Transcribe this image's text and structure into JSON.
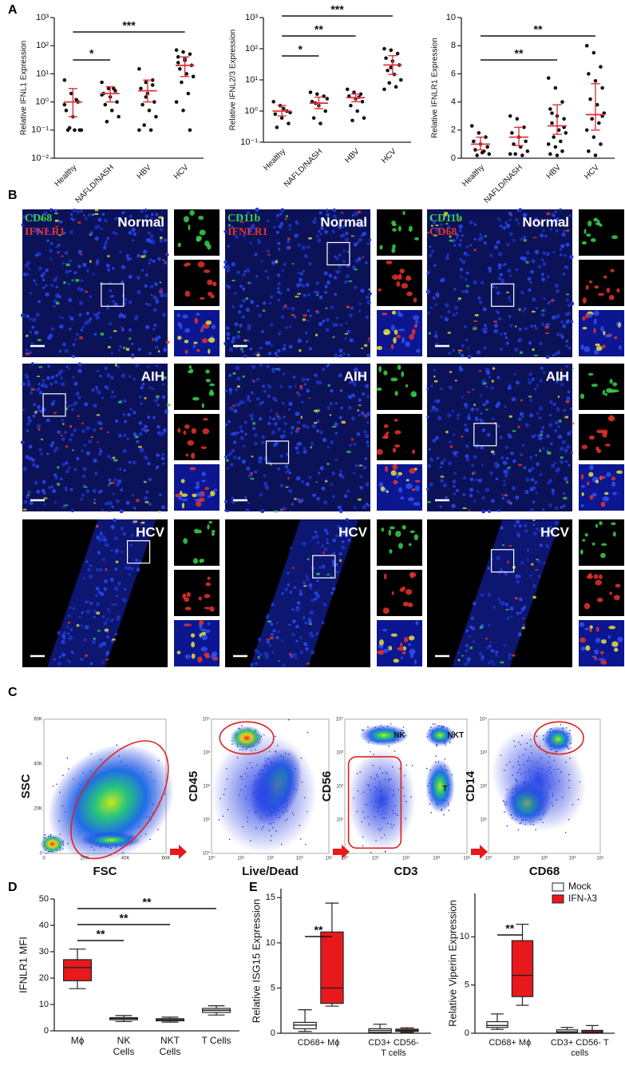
{
  "panel_labels": [
    "A",
    "B",
    "C",
    "D",
    "E"
  ],
  "chart_data": [
    {
      "type": "dot_plot",
      "y_label": "Relative IFNL1 Expression",
      "log_scale": true,
      "ylim": [
        0.01,
        1000
      ],
      "yticks": [
        {
          "value": 0.01,
          "label": "10⁻²"
        },
        {
          "value": 0.1,
          "label": "10⁻¹"
        },
        {
          "value": 1,
          "label": "10⁰"
        },
        {
          "value": 10,
          "label": "10¹"
        },
        {
          "value": 100,
          "label": "10²"
        },
        {
          "value": 1000,
          "label": "10³"
        }
      ],
      "categories": [
        "Healthy",
        "NAFLD/NASH",
        "HBV",
        "HCV"
      ],
      "points": [
        [
          6,
          2,
          1,
          0.5,
          0.3,
          0.1,
          0.1,
          0.1,
          0.1,
          0.12,
          1.2,
          0.8
        ],
        [
          5,
          3,
          2.5,
          2,
          1.5,
          1,
          0.8,
          0.5,
          0.3,
          0.2,
          3,
          1.8
        ],
        [
          15,
          5,
          4,
          3,
          2,
          1,
          0.8,
          0.5,
          0.3,
          0.15,
          0.1,
          0.1,
          1.5,
          6
        ],
        [
          70,
          60,
          50,
          40,
          30,
          20,
          15,
          10,
          8,
          5,
          2,
          1,
          0.5,
          0.1,
          25,
          35
        ]
      ],
      "means": [
        1,
        2,
        2.5,
        20
      ],
      "error_low": [
        0.3,
        1,
        1,
        8
      ],
      "error_high": [
        3,
        3.5,
        6,
        40
      ],
      "color": "#e0323c",
      "significance": [
        {
          "from": "Healthy",
          "to": "NAFLD/NASH",
          "label": "*"
        },
        {
          "from": "Healthy",
          "to": "HCV",
          "label": "***"
        }
      ]
    },
    {
      "type": "dot_plot",
      "y_label": "Relative IFNL2/3 Expression",
      "log_scale": true,
      "ylim": [
        0.1,
        1000
      ],
      "yticks": [
        {
          "value": 0.1,
          "label": "10⁻¹"
        },
        {
          "value": 1,
          "label": "10⁰"
        },
        {
          "value": 10,
          "label": "10¹"
        },
        {
          "value": 100,
          "label": "10²"
        },
        {
          "value": 1000,
          "label": "10³"
        }
      ],
      "categories": [
        "Healthy",
        "NAFLD/NASH",
        "HBV",
        "HCV"
      ],
      "points": [
        [
          2,
          1.5,
          1,
          0.8,
          0.6,
          0.4,
          0.3,
          1.2,
          0.9
        ],
        [
          4,
          3.5,
          3,
          2,
          1.5,
          1,
          0.6,
          0.4,
          2.5,
          1.8
        ],
        [
          5,
          4,
          3.5,
          3,
          2.5,
          2,
          1.5,
          1,
          0.6,
          0.5,
          2.8
        ],
        [
          100,
          90,
          70,
          50,
          40,
          30,
          20,
          15,
          10,
          8,
          6,
          5,
          25
        ]
      ],
      "means": [
        1,
        1.8,
        2.7,
        30
      ],
      "error_low": [
        0.7,
        1.2,
        2,
        15
      ],
      "error_high": [
        1.5,
        2.8,
        3.5,
        60
      ],
      "color": "#e0323c",
      "significance": [
        {
          "from": "Healthy",
          "to": "NAFLD/NASH",
          "label": "*"
        },
        {
          "from": "Healthy",
          "to": "HBV",
          "label": "**"
        },
        {
          "from": "Healthy",
          "to": "HCV",
          "label": "***"
        }
      ]
    },
    {
      "type": "dot_plot",
      "y_label": "Relative IFNLR1 Expression",
      "log_scale": false,
      "ylim": [
        0,
        10
      ],
      "yticks": [
        0,
        2,
        4,
        6,
        8,
        10
      ],
      "categories": [
        "Healthy",
        "NAFLD/NASH",
        "HBV",
        "HCV"
      ],
      "points": [
        [
          2.3,
          1.8,
          1.5,
          1.2,
          1,
          0.8,
          0.6,
          0.4,
          0.3,
          0.2,
          0.5
        ],
        [
          3,
          2.8,
          2.2,
          1.8,
          1.5,
          1.2,
          1,
          0.8,
          0.5,
          0.3,
          0.2,
          0.3
        ],
        [
          5.7,
          5,
          4,
          3.5,
          3,
          2.8,
          2.5,
          2,
          1.8,
          1.5,
          1.2,
          1,
          0.8,
          0.5,
          0.3,
          0.2,
          2.2,
          3.2
        ],
        [
          8,
          7.5,
          6.5,
          6,
          5.5,
          5,
          4.2,
          3.8,
          3.2,
          2.8,
          2.5,
          2,
          1.5,
          1,
          0.5,
          0.2,
          3
        ]
      ],
      "means": [
        1,
        1.5,
        2.3,
        3.1
      ],
      "error_low": [
        0.6,
        0.9,
        1.7,
        2
      ],
      "error_high": [
        1.5,
        2.2,
        3.8,
        5.3
      ],
      "color": "#e0323c",
      "significance": [
        {
          "from": "Healthy",
          "to": "HBV",
          "label": "**"
        },
        {
          "from": "Healthy",
          "to": "HCV",
          "label": "**"
        }
      ]
    },
    {
      "type": "box",
      "y_label": "IFNLR1 MFI",
      "ylim": [
        0,
        50
      ],
      "yticks": [
        0,
        10,
        20,
        30,
        40,
        50
      ],
      "categories": [
        "Mɸ",
        "NK Cells",
        "NKT Cells",
        "T Cells"
      ],
      "series": [
        {
          "colors": [
            "#e8191b",
            "#ffffff",
            "#ffffff",
            "#ffffff"
          ],
          "boxes": [
            {
              "min": 16,
              "q1": 19,
              "median": 24,
              "q3": 27,
              "max": 31
            },
            {
              "min": 3.5,
              "q1": 4.2,
              "median": 4.7,
              "q3": 5,
              "max": 5.8
            },
            {
              "min": 3.3,
              "q1": 3.8,
              "median": 4.2,
              "q3": 4.6,
              "max": 5.2
            },
            {
              "min": 6,
              "q1": 7,
              "median": 7.8,
              "q3": 8.5,
              "max": 9.5
            }
          ]
        }
      ],
      "significance": [
        {
          "from": "Mɸ",
          "to": "NK Cells",
          "label": "**"
        },
        {
          "from": "Mɸ",
          "to": "NKT Cells",
          "label": "**"
        },
        {
          "from": "Mɸ",
          "to": "T Cells",
          "label": "**"
        }
      ]
    },
    {
      "type": "box",
      "y_label": "Relative ISG15 Expression",
      "ylim": [
        0,
        16
      ],
      "yticks": [
        0,
        5,
        10,
        15
      ],
      "categories": [
        "CD68+ Mɸ",
        "CD3+ CD56- T cells"
      ],
      "series": [
        {
          "name": "Mock",
          "color": "#ffffff",
          "boxes": [
            {
              "min": 0.2,
              "q1": 0.5,
              "median": 0.9,
              "q3": 1.2,
              "max": 2.6
            },
            {
              "min": 0,
              "q1": 0.1,
              "median": 0.3,
              "q3": 0.5,
              "max": 1
            }
          ]
        },
        {
          "name": "IFN-λ3",
          "color": "#e8191b",
          "boxes": [
            {
              "min": 3,
              "q1": 3.3,
              "median": 5,
              "q3": 11.2,
              "max": 14.4
            },
            {
              "min": 0.1,
              "q1": 0.2,
              "median": 0.3,
              "q3": 0.45,
              "max": 0.6
            }
          ]
        }
      ],
      "significance": [
        {
          "category": "CD68+ Mɸ",
          "from": "Mock",
          "to": "IFN-λ3",
          "label": "**"
        }
      ]
    },
    {
      "type": "box",
      "y_label": "Relative Viperin Expression",
      "ylim": [
        0,
        14.5
      ],
      "yticks": [
        0,
        5,
        10
      ],
      "categories": [
        "CD68+ Mɸ",
        "CD3+ CD56- T cells"
      ],
      "legend": "upper right",
      "series": [
        {
          "name": "Mock",
          "color": "#ffffff",
          "boxes": [
            {
              "min": 0.4,
              "q1": 0.6,
              "median": 0.8,
              "q3": 1.2,
              "max": 2
            },
            {
              "min": 0,
              "q1": 0.05,
              "median": 0.15,
              "q3": 0.35,
              "max": 0.6
            }
          ]
        },
        {
          "name": "IFN-λ3",
          "color": "#e8191b",
          "boxes": [
            {
              "min": 2.9,
              "q1": 3.8,
              "median": 6,
              "q3": 9.6,
              "max": 11.3
            },
            {
              "min": 0,
              "q1": 0.05,
              "median": 0.15,
              "q3": 0.3,
              "max": 0.8
            }
          ]
        }
      ],
      "significance": [
        {
          "category": "CD68+ Mɸ",
          "from": "Mock",
          "to": "IFN-λ3",
          "label": "**"
        }
      ]
    }
  ],
  "micrographs": {
    "rows": [
      "Normal",
      "AIH",
      "HCV"
    ],
    "columns": [
      {
        "stains": [
          {
            "name": "CD68",
            "color": "#3ad14a"
          },
          {
            "name": "IFNLR1",
            "color": "#e5322b"
          }
        ]
      },
      {
        "stains": [
          {
            "name": "CD11b",
            "color": "#3ad14a"
          },
          {
            "name": "IFNLR1",
            "color": "#e5322b"
          }
        ]
      },
      {
        "stains": [
          {
            "name": "CD11b",
            "color": "#3ad14a"
          },
          {
            "name": "CD68",
            "color": "#e5322b"
          }
        ]
      }
    ]
  },
  "flow": {
    "plots": [
      {
        "x_label": "FSC",
        "y_label": "SSC",
        "xticks": [
          "0",
          "20K",
          "40K",
          "60K"
        ],
        "yticks": [
          "0",
          "20K",
          "40K",
          "60K"
        ]
      },
      {
        "x_label": "Live/Dead",
        "y_label": "CD45",
        "xticks": [
          "10⁰",
          "10¹",
          "10²",
          "10³",
          "10⁴"
        ],
        "yticks": [
          "10⁰",
          "10¹",
          "10²",
          "10³",
          "10⁴"
        ]
      },
      {
        "x_label": "CD3",
        "y_label": "CD56",
        "xticks": [
          "10⁰",
          "10¹",
          "10²",
          "10³",
          "10⁴"
        ],
        "yticks": [
          "10⁰",
          "10¹",
          "10²",
          "10³",
          "10⁴"
        ],
        "annotations": [
          "NK",
          "NKT",
          "T"
        ]
      },
      {
        "x_label": "CD68",
        "y_label": "CD14",
        "xticks": [
          "10⁰",
          "10¹",
          "10²",
          "10³",
          "10⁴"
        ],
        "yticks": [
          "10⁰",
          "10¹",
          "10²",
          "10³",
          "10⁴"
        ]
      }
    ]
  }
}
